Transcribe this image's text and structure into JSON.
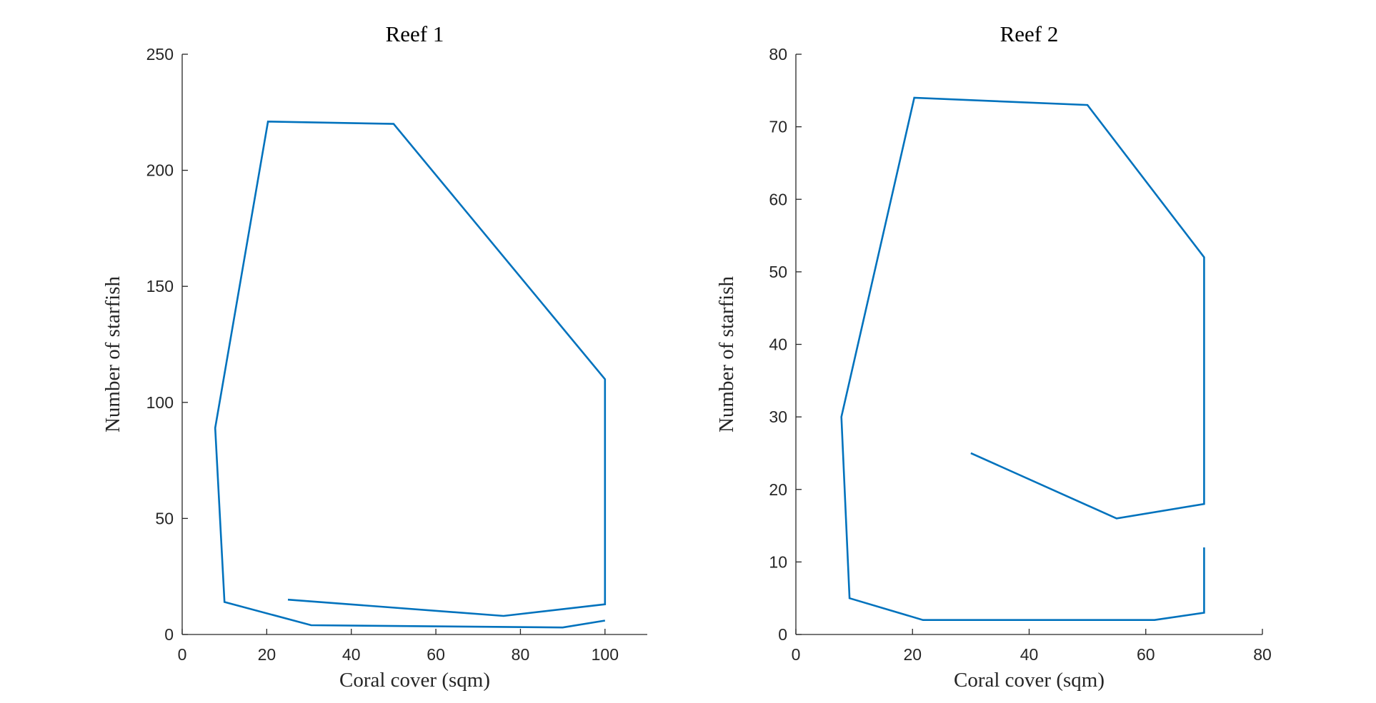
{
  "chart_data": [
    {
      "type": "line",
      "title": "Reef 1",
      "xlabel": "Coral cover (sqm)",
      "ylabel": "Number of starfish",
      "xlim": [
        0,
        110
      ],
      "ylim": [
        0,
        250
      ],
      "xticks": [
        0,
        20,
        40,
        60,
        80,
        100
      ],
      "yticks": [
        0,
        50,
        100,
        150,
        200,
        250
      ],
      "grid": false,
      "series": [
        {
          "color": "#0072BD",
          "segments": [
            [
              [
                25,
                15
              ],
              [
                76,
                8
              ],
              [
                100,
                13
              ],
              [
                100,
                110
              ],
              [
                50,
                220
              ],
              [
                20.3,
                221
              ],
              [
                7.8,
                89
              ],
              [
                10,
                14
              ],
              [
                30.5,
                4
              ],
              [
                90,
                3
              ],
              [
                100,
                6
              ]
            ]
          ]
        }
      ]
    },
    {
      "type": "line",
      "title": "Reef 2",
      "xlabel": "Coral cover (sqm)",
      "ylabel": "Number of starfish",
      "xlim": [
        0,
        80
      ],
      "ylim": [
        0,
        80
      ],
      "xticks": [
        0,
        20,
        40,
        60,
        80
      ],
      "yticks": [
        0,
        10,
        20,
        30,
        40,
        50,
        60,
        70,
        80
      ],
      "grid": false,
      "series": [
        {
          "color": "#0072BD",
          "segments": [
            [
              [
                30,
                25
              ],
              [
                55,
                16
              ],
              [
                70,
                18
              ],
              [
                70,
                52
              ],
              [
                50,
                73
              ],
              [
                20.3,
                74
              ],
              [
                7.8,
                30
              ],
              [
                9.2,
                5
              ],
              [
                21.8,
                2
              ],
              [
                61.5,
                2
              ],
              [
                70,
                3
              ],
              [
                70,
                12
              ]
            ]
          ]
        }
      ]
    }
  ]
}
